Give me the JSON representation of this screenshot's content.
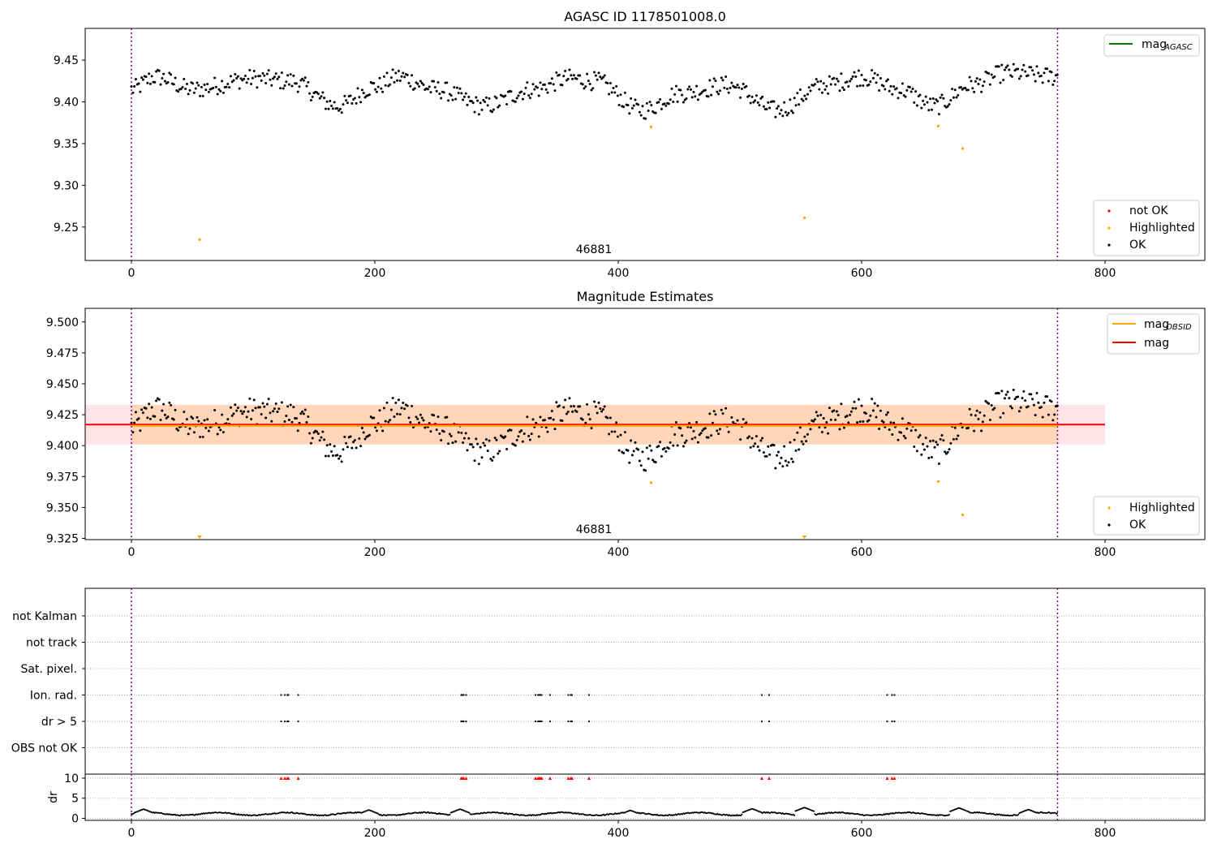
{
  "chart_data": [
    {
      "type": "scatter",
      "title": "AGASC ID 1178501008.0",
      "xlabel": "",
      "ylabel": "",
      "xlim": [
        -38,
        882
      ],
      "ylim": [
        9.21,
        9.488
      ],
      "xticks": [
        0,
        200,
        400,
        600,
        800
      ],
      "yticks": [
        9.25,
        9.3,
        9.35,
        9.4,
        9.45
      ],
      "obsid_marker_x": [
        0,
        761
      ],
      "obsid_label": "46881",
      "obsid_label_x": 380,
      "legend_lines": [
        {
          "name": "mag_AGASC",
          "label_main": "mag",
          "label_sub": "AGASC",
          "color": "#008000"
        }
      ],
      "legend_points": [
        {
          "name": "not OK",
          "color": "#ff0000"
        },
        {
          "name": "Highlighted",
          "color": "#ffa500"
        },
        {
          "name": "OK",
          "color": "#000000"
        }
      ],
      "series": [
        {
          "name": "OK",
          "color": "#000000",
          "anchors": [
            [
              0,
              9.415
            ],
            [
              20,
              9.43
            ],
            [
              50,
              9.415
            ],
            [
              100,
              9.428
            ],
            [
              130,
              9.425
            ],
            [
              170,
              9.395
            ],
            [
              200,
              9.418
            ],
            [
              220,
              9.43
            ],
            [
              250,
              9.415
            ],
            [
              290,
              9.395
            ],
            [
              330,
              9.415
            ],
            [
              360,
              9.428
            ],
            [
              380,
              9.425
            ],
            [
              420,
              9.39
            ],
            [
              450,
              9.41
            ],
            [
              490,
              9.42
            ],
            [
              530,
              9.39
            ],
            [
              570,
              9.42
            ],
            [
              600,
              9.43
            ],
            [
              630,
              9.415
            ],
            [
              660,
              9.395
            ],
            [
              690,
              9.42
            ],
            [
              720,
              9.435
            ],
            [
              761,
              9.43
            ]
          ],
          "noise": 0.011
        },
        {
          "name": "Highlighted",
          "color": "#ffa500",
          "x": [
            56,
            427,
            553,
            663,
            683
          ],
          "y": [
            9.235,
            9.37,
            9.261,
            9.371,
            9.344
          ]
        },
        {
          "name": "not OK",
          "color": "#ff0000",
          "x": [],
          "y": []
        }
      ]
    },
    {
      "type": "scatter",
      "title": "Magnitude Estimates",
      "xlabel": "",
      "ylabel": "",
      "xlim": [
        -38,
        882
      ],
      "ylim": [
        9.324,
        9.511
      ],
      "xticks": [
        0,
        200,
        400,
        600,
        800
      ],
      "yticks": [
        9.325,
        9.35,
        9.375,
        9.4,
        9.425,
        9.45,
        9.475,
        9.5
      ],
      "obsid_marker_x": [
        0,
        761
      ],
      "obsid_label": "46881",
      "obsid_label_x": 380,
      "mag_line": {
        "value": 9.417,
        "x_start": -38,
        "x_end": 800,
        "band": [
          9.401,
          9.433
        ],
        "color": "#ff0000"
      },
      "mag_obsid_line": {
        "value": 9.416,
        "x_start": 0,
        "x_end": 761,
        "band": [
          9.401,
          9.433
        ],
        "color": "#ffa500"
      },
      "clipped_highlighted_x": [
        56,
        553
      ],
      "legend_lines": [
        {
          "name": "mag_OBSID",
          "label_main": "mag",
          "label_sub": "OBSID",
          "color": "#ffa500"
        },
        {
          "name": "mag",
          "label_main": "mag",
          "label_sub": "",
          "color": "#ff0000"
        }
      ],
      "legend_points": [
        {
          "name": "Highlighted",
          "color": "#ffa500"
        },
        {
          "name": "OK",
          "color": "#000000"
        }
      ],
      "series": [
        {
          "name": "OK",
          "color": "#000000",
          "same_as": "panel-1"
        },
        {
          "name": "Highlighted",
          "color": "#ffa500",
          "x": [
            427,
            663,
            683
          ],
          "y": [
            9.37,
            9.371,
            9.344
          ]
        }
      ]
    },
    {
      "type": "scatter",
      "title": "",
      "xlabel": "",
      "ylabel": "",
      "xlim": [
        -38,
        882
      ],
      "xticks": [
        0,
        200,
        400,
        600,
        800
      ],
      "obsid_marker_x": [
        0,
        761
      ],
      "categories": [
        "not Kalman",
        "not track",
        "Sat. pixel.",
        "Ion. rad.",
        "dr > 5",
        "OBS not OK"
      ],
      "flag_events_x": [
        123,
        126,
        128,
        129,
        137,
        271,
        272,
        273,
        275,
        332,
        334,
        335,
        336,
        337,
        344,
        359,
        361,
        362,
        376,
        518,
        524,
        621,
        625,
        627
      ],
      "flag_rows": [
        "Ion. rad.",
        "dr > 5"
      ]
    },
    {
      "type": "scatter",
      "title": "",
      "xlabel": "",
      "ylabel": "dr",
      "xlim": [
        -38,
        882
      ],
      "ylim": [
        -0.5,
        11
      ],
      "yticks": [
        0,
        5,
        10
      ],
      "xticks": [
        0,
        200,
        400,
        600,
        800
      ],
      "obsid_marker_x": [
        0,
        761
      ],
      "clipped_marker_value": 10,
      "series": [
        {
          "name": "dr",
          "color": "#000000",
          "base": 1.1,
          "bumps": [
            [
              10,
              2.3
            ],
            [
              195,
              2.1
            ],
            [
              270,
              2.3
            ],
            [
              410,
              2.0
            ],
            [
              510,
              2.4
            ],
            [
              553,
              2.7
            ],
            [
              680,
              2.6
            ],
            [
              737,
              2.2
            ]
          ]
        }
      ]
    }
  ]
}
